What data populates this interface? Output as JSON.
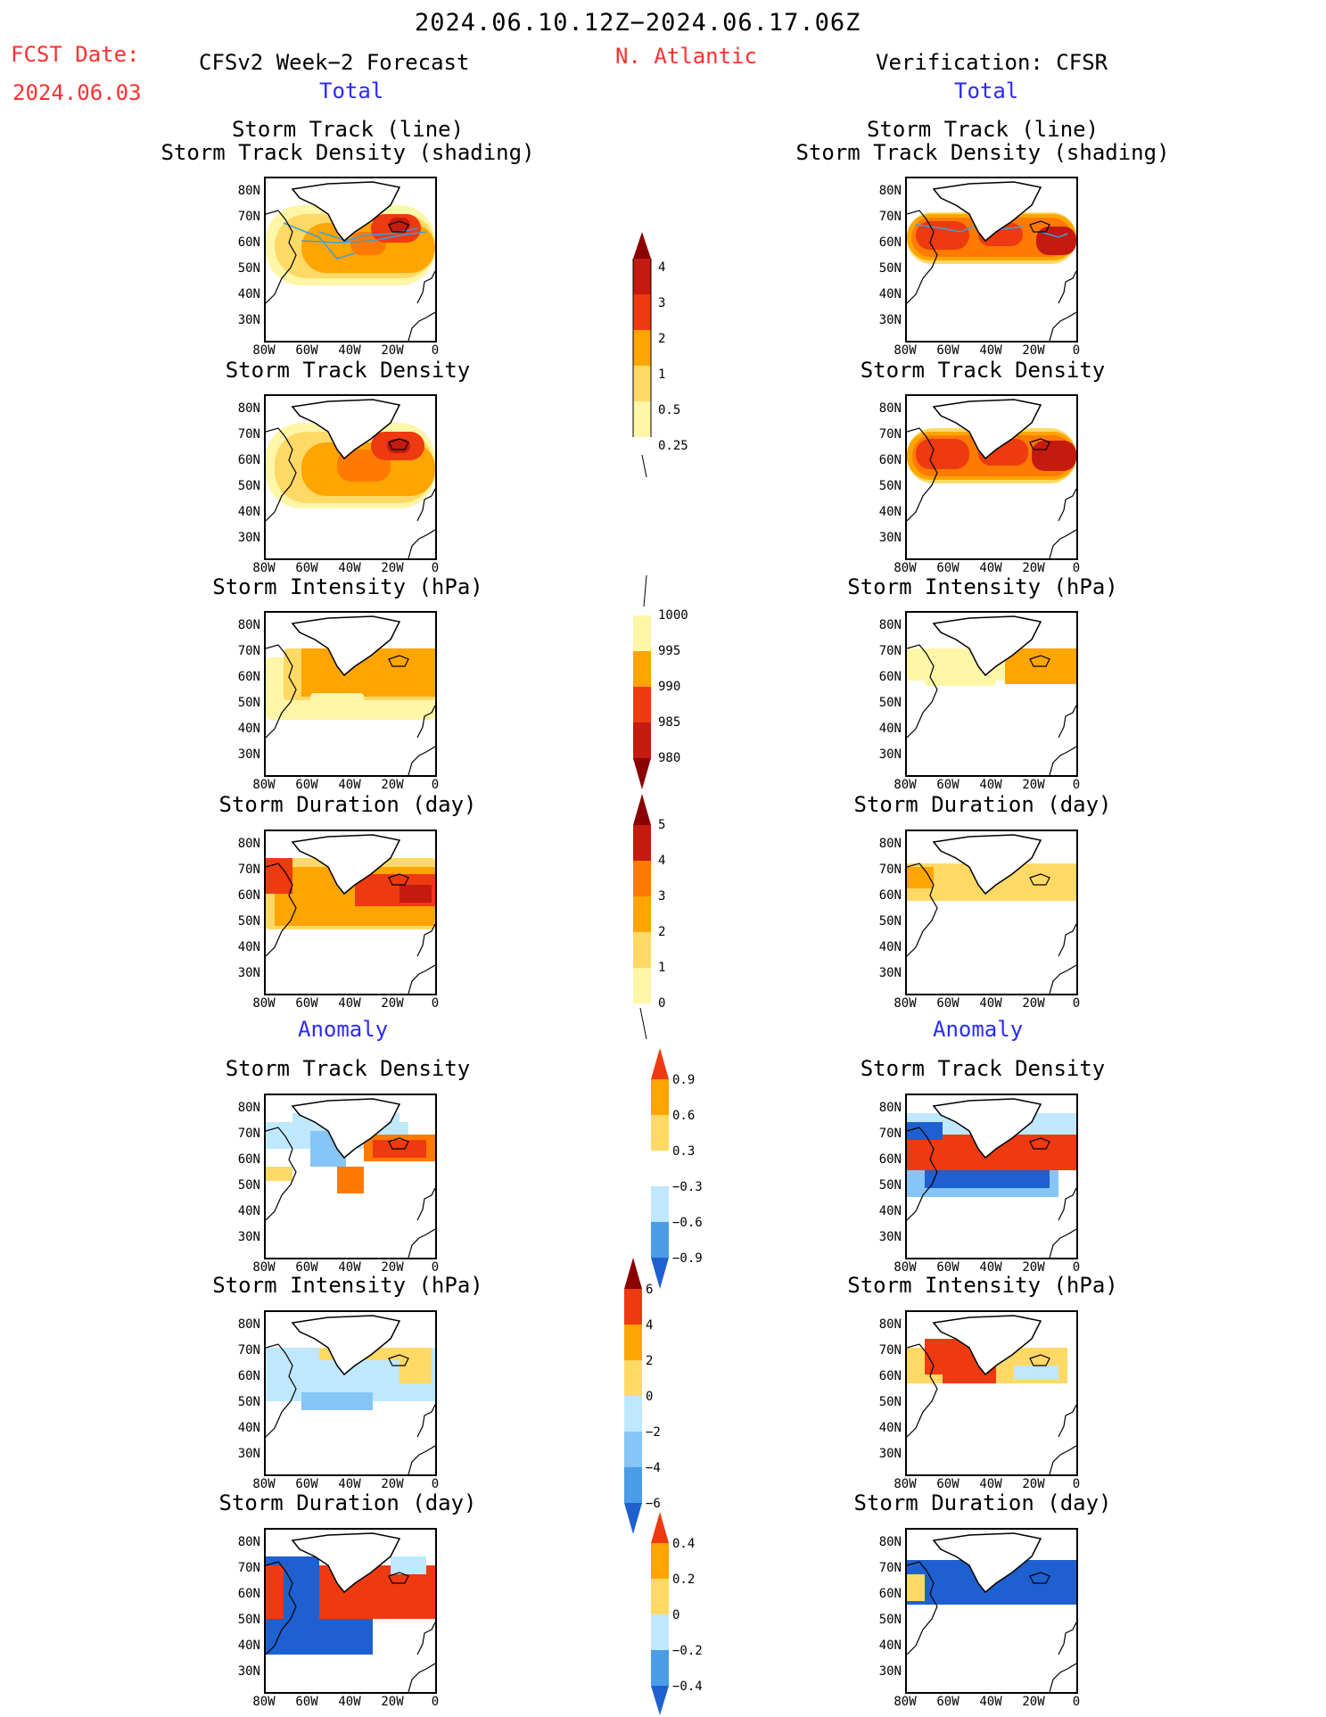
{
  "header": {
    "period": "2024.06.10.12Z−2024.06.17.06Z",
    "fcst_label": "FCST Date:",
    "fcst_date": "2024.06.03",
    "left_title": "CFSv2 Week−2 Forecast",
    "region": "N. Atlantic",
    "right_title": "Verification: CFSR",
    "total_label": "Total",
    "anomaly_label": "Anomaly"
  },
  "rows": {
    "r1": "Storm Track (line)",
    "r1b": "Storm Track Density (shading)",
    "r2": "Storm Track Density",
    "r3": "Storm Intensity (hPa)",
    "r4": "Storm Duration (day)",
    "r5": "Storm Track Density",
    "r6": "Storm Intensity (hPa)",
    "r7": "Storm Duration (day)"
  },
  "axes": {
    "lat_ticks": [
      "80N",
      "70N",
      "60N",
      "50N",
      "40N",
      "30N"
    ],
    "lon_ticks": [
      "80W",
      "60W",
      "40W",
      "20W",
      "0"
    ]
  },
  "colorbars": {
    "density": [
      "4",
      "3",
      "2",
      "1",
      "0.5",
      "0.25"
    ],
    "intensity": [
      "1000",
      "995",
      "990",
      "985",
      "980"
    ],
    "duration": [
      "5",
      "4",
      "3",
      "2",
      "1",
      "0"
    ],
    "density_anom": [
      "0.9",
      "0.6",
      "0.3",
      "−0.3",
      "−0.6",
      "−0.9"
    ],
    "intensity_anom": [
      "6",
      "4",
      "2",
      "0",
      "−2",
      "−4",
      "−6"
    ],
    "duration_anom": [
      "0.4",
      "0.2",
      "0",
      "−0.2",
      "−0.4"
    ]
  },
  "colors": {
    "lightyellow": "#fff6a8",
    "yellow": "#ffd966",
    "orange": "#ffa500",
    "darkorange": "#ff7a00",
    "red": "#ee3a10",
    "darkred": "#c41a10",
    "maroon": "#8b0000",
    "lightblue": "#bfe8ff",
    "blue": "#86c5f5",
    "midblue": "#4a9de6",
    "deepblue": "#1e60d0",
    "track": "#3d9ee0"
  }
}
